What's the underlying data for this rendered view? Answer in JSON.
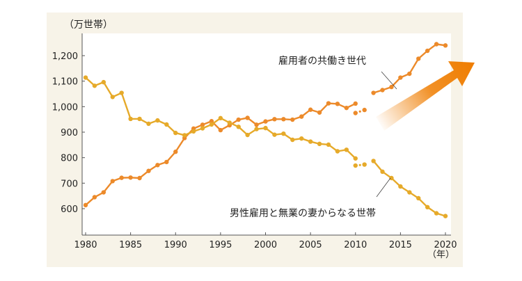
{
  "chart_data": {
    "type": "line",
    "title": "",
    "ylabel": "（万世帯）",
    "xlabel": "（年）",
    "xlim": [
      1980,
      2020
    ],
    "ylim": [
      500,
      1280
    ],
    "xticks": [
      1980,
      1985,
      1990,
      1995,
      2000,
      2005,
      2010,
      2015,
      2020
    ],
    "yticks": [
      600,
      700,
      800,
      900,
      1000,
      1100,
      1200
    ],
    "ytick_labels": [
      "600",
      "700",
      "800",
      "900",
      "1,000",
      "1,100",
      "1,200"
    ],
    "grid": false,
    "series": [
      {
        "name": "雇用者の共働き世代",
        "color": "#ec8a2a",
        "segments": [
          {
            "x": [
              1980,
              1981,
              1982,
              1983,
              1984,
              1985,
              1986,
              1987,
              1988,
              1989,
              1990,
              1991,
              1992,
              1993,
              1994,
              1995,
              1996,
              1997,
              1998,
              1999,
              2000,
              2001,
              2002,
              2003,
              2004,
              2005,
              2006,
              2007,
              2008,
              2009,
              2010
            ],
            "y": [
              614,
              645,
              664,
              708,
              721,
              722,
              720,
              748,
              771,
              783,
              823,
              877,
              914,
              929,
              943,
              908,
              927,
              949,
              956,
              929,
              942,
              951,
              951,
              949,
              961,
              988,
              977,
              1013,
              1011,
              995,
              1012
            ]
          },
          {
            "x": [
              2010,
              2011
            ],
            "y": [
              975,
              987
            ],
            "dotted": true
          },
          {
            "x": [
              2012,
              2013,
              2014,
              2015,
              2016,
              2017,
              2018,
              2019,
              2020
            ],
            "y": [
              1054,
              1065,
              1077,
              1114,
              1129,
              1188,
              1219,
              1245,
              1240
            ]
          }
        ]
      },
      {
        "name": "男性雇用と無業の妻からなる世帯",
        "color": "#e6aa2a",
        "segments": [
          {
            "x": [
              1980,
              1981,
              1982,
              1983,
              1984,
              1985,
              1986,
              1987,
              1988,
              1989,
              1990,
              1991,
              1992,
              1993,
              1994,
              1995,
              1996,
              1997,
              1998,
              1999,
              2000,
              2001,
              2002,
              2003,
              2004,
              2005,
              2006,
              2007,
              2008,
              2009,
              2010
            ],
            "y": [
              1114,
              1082,
              1096,
              1038,
              1054,
              952,
              952,
              933,
              946,
              930,
              897,
              888,
              903,
              915,
              930,
              955,
              937,
              921,
              889,
              912,
              916,
              890,
              894,
              870,
              875,
              863,
              854,
              851,
              825,
              831,
              797
            ]
          },
          {
            "x": [
              2010,
              2011
            ],
            "y": [
              769,
              773
            ],
            "dotted": true
          },
          {
            "x": [
              2012,
              2013,
              2014,
              2015,
              2016,
              2017,
              2018,
              2019,
              2020
            ],
            "y": [
              787,
              745,
              720,
              687,
              664,
              641,
              606,
              582,
              571
            ]
          }
        ]
      }
    ],
    "annotations": [
      {
        "text": "雇用者の共働き世代",
        "series": 0,
        "points_to_year": 2013
      },
      {
        "text": "男性雇用と無業の妻からなる世帯",
        "series": 1,
        "points_to_year": 2014
      }
    ],
    "decoration": {
      "arrow": "up-right",
      "arrow_color": "#ef7d00"
    },
    "background_color": "#f7f3e8"
  }
}
